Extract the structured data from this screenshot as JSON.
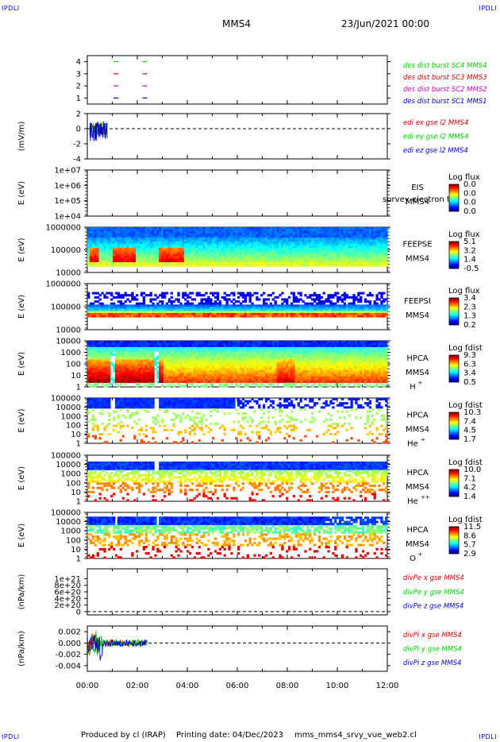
{
  "header": {
    "corner_label": "IPDLI",
    "spacecraft": "MMS4",
    "datetime": "23/Jun/2021 00:00"
  },
  "footer": {
    "produced_by": "Produced by cl (IRAP)",
    "printing_date": "Printing date: 04/Dec/2023",
    "filename": "mms_mms4_srvy_vue_web2.cl"
  },
  "chart_data": {
    "type": "multi-panel-timeseries",
    "x_range": [
      "00:00",
      "12:00"
    ],
    "x_ticks": [
      "00:00",
      "02:00",
      "04:00",
      "06:00",
      "08:00",
      "10:00",
      "12:00"
    ],
    "panels": [
      {
        "id": "burst",
        "type": "scatter",
        "ylabel": "",
        "ylim": [
          0.5,
          4.5
        ],
        "yticks": [
          "1",
          "2",
          "3",
          "4"
        ],
        "series": [
          {
            "name": "des dist burst SC1 MMS1",
            "color": "#0000cc",
            "y": 1,
            "x_hours": [
              1.15,
              2.3
            ]
          },
          {
            "name": "des dist burst SC2 MMS2",
            "color": "#cc00cc",
            "y": 2,
            "x_hours": [
              1.15,
              2.3
            ]
          },
          {
            "name": "des dist burst SC3 MMS3",
            "color": "#cc0000",
            "y": 3,
            "x_hours": [
              1.15,
              2.3
            ]
          },
          {
            "name": "des dist burst SC4 MMS4",
            "color": "#00cc00",
            "y": 4,
            "x_hours": [
              1.15,
              2.3
            ]
          }
        ]
      },
      {
        "id": "edi",
        "type": "line",
        "ylabel": "(mV/m)",
        "ylim": [
          -4,
          2
        ],
        "yticks": [
          "-4",
          "-2",
          "0",
          "2"
        ],
        "data_extent_hours": [
          0.1,
          0.8
        ],
        "series": [
          {
            "name": "edi ex gse l2 MMS4",
            "color": "#cc0000"
          },
          {
            "name": "edi ey gse l2 MMS4",
            "color": "#00cc00"
          },
          {
            "name": "edi ez gse l2 MMS4",
            "color": "#0000cc"
          }
        ]
      },
      {
        "id": "eis",
        "type": "heatmap",
        "ylabel": "E (eV)",
        "yticks": [
          "1e+07",
          "1e+06",
          "1e+05",
          "1e+04"
        ],
        "instrument": [
          "EIS",
          "MMS4"
        ],
        "instrument_note": "survey electron to",
        "colorbar_title": "Log flux",
        "colorbar_ticks": [
          "0.0",
          "0.0",
          "0.0",
          "0.0"
        ]
      },
      {
        "id": "feepse",
        "type": "heatmap",
        "ylabel": "E (eV)",
        "yticks": [
          "1000000",
          "100000",
          "10000"
        ],
        "instrument": [
          "FEEPSE",
          "MMS4"
        ],
        "colorbar_title": "Log flux",
        "colorbar_ticks": [
          "5.1",
          "3.2",
          "1.4",
          "-0.5"
        ]
      },
      {
        "id": "feepsi",
        "type": "heatmap",
        "ylabel": "E (eV)",
        "yticks": [
          "1000000",
          "100000",
          "10000"
        ],
        "instrument": [
          "FEEPSI",
          "MMS4"
        ],
        "colorbar_title": "Log flux",
        "colorbar_ticks": [
          "3.4",
          "2.3",
          "1.3",
          "0.2"
        ]
      },
      {
        "id": "hpca_h",
        "type": "heatmap",
        "ylabel": "E (eV)",
        "yticks": [
          "10000",
          "1000",
          "100",
          "10",
          "1"
        ],
        "instrument": [
          "HPCA",
          "MMS4"
        ],
        "species": "H",
        "charge": "+",
        "colorbar_title": "Log fdist",
        "colorbar_ticks": [
          "9.3",
          "6.3",
          "3.4",
          "0.5"
        ]
      },
      {
        "id": "hpca_he1",
        "type": "heatmap",
        "ylabel": "E (eV)",
        "yticks": [
          "100000",
          "10000",
          "1000",
          "100",
          "10",
          "1"
        ],
        "instrument": [
          "HPCA",
          "MMS4"
        ],
        "species": "He",
        "charge": "+",
        "colorbar_title": "Log fdist",
        "colorbar_ticks": [
          "10.3",
          "7.4",
          "4.5",
          "1.7"
        ]
      },
      {
        "id": "hpca_he2",
        "type": "heatmap",
        "ylabel": "E (eV)",
        "yticks": [
          "100000",
          "10000",
          "1000",
          "100",
          "10",
          "1"
        ],
        "instrument": [
          "HPCA",
          "MMS4"
        ],
        "species": "He",
        "charge": "++",
        "colorbar_title": "Log fdist",
        "colorbar_ticks": [
          "10.0",
          "7.1",
          "4.2",
          "1.4"
        ]
      },
      {
        "id": "hpca_o",
        "type": "heatmap",
        "ylabel": "E (eV)",
        "yticks": [
          "100000",
          "10000",
          "1000",
          "100",
          "10",
          "1"
        ],
        "instrument": [
          "HPCA",
          "MMS4"
        ],
        "species": "O",
        "charge": "+",
        "colorbar_title": "Log fdist",
        "colorbar_ticks": [
          "11.5",
          "8.6",
          "5.7",
          "2.9"
        ]
      },
      {
        "id": "divpe",
        "type": "line",
        "ylabel": "(nPa/km)",
        "ylim": [
          -1e+20,
          1.3e+21
        ],
        "yticks": [
          "1e+21",
          "8e+20",
          "6e+20",
          "4e+20",
          "2e+20",
          "0"
        ],
        "series": [
          {
            "name": "divPe x gse MMS4",
            "color": "#cc0000"
          },
          {
            "name": "divPe y gse MMS4",
            "color": "#00cc00"
          },
          {
            "name": "divPe z gse MMS4",
            "color": "#0000cc"
          }
        ]
      },
      {
        "id": "divpi",
        "type": "line",
        "ylabel": "(nPa/km)",
        "ylim": [
          -0.005,
          0.003
        ],
        "yticks": [
          "0.002",
          "0.000",
          "-0.002",
          "-0.004"
        ],
        "data_extent_hours": [
          0.0,
          2.4
        ],
        "series": [
          {
            "name": "divPi x gse MMS4",
            "color": "#cc0000"
          },
          {
            "name": "divPi y gse MMS4",
            "color": "#00cc00"
          },
          {
            "name": "divPi z gse MMS4",
            "color": "#0000cc"
          }
        ]
      }
    ]
  }
}
